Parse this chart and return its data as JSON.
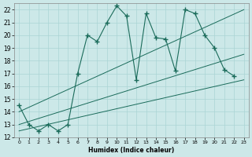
{
  "xlabel": "Humidex (Indice chaleur)",
  "bg_color": "#cce8e8",
  "line_color": "#1a6b5a",
  "grid_color": "#aad4d4",
  "xlim": [
    -0.5,
    23.5
  ],
  "ylim": [
    12,
    22.5
  ],
  "xticks": [
    0,
    1,
    2,
    3,
    4,
    5,
    6,
    7,
    8,
    9,
    10,
    11,
    12,
    13,
    14,
    15,
    16,
    17,
    18,
    19,
    20,
    21,
    22,
    23
  ],
  "yticks": [
    12,
    13,
    14,
    15,
    16,
    17,
    18,
    19,
    20,
    21,
    22
  ],
  "main_x": [
    0,
    1,
    2,
    3,
    4,
    5,
    6,
    7,
    8,
    9,
    10,
    11,
    12,
    13,
    14,
    15,
    16,
    17,
    18,
    19,
    20,
    21,
    22
  ],
  "main_y": [
    14.5,
    13.0,
    12.5,
    13.0,
    12.5,
    13.0,
    17.0,
    20.0,
    19.5,
    21.0,
    22.3,
    21.5,
    16.5,
    21.7,
    19.8,
    19.7,
    17.2,
    22.0,
    21.7,
    20.0,
    19.0,
    17.3,
    16.8
  ],
  "trend1_x": [
    0,
    23
  ],
  "trend1_y": [
    12.5,
    16.5
  ],
  "trend2_x": [
    0,
    23
  ],
  "trend2_y": [
    13.0,
    18.5
  ],
  "trend3_x": [
    0,
    23
  ],
  "trend3_y": [
    14.0,
    22.0
  ]
}
